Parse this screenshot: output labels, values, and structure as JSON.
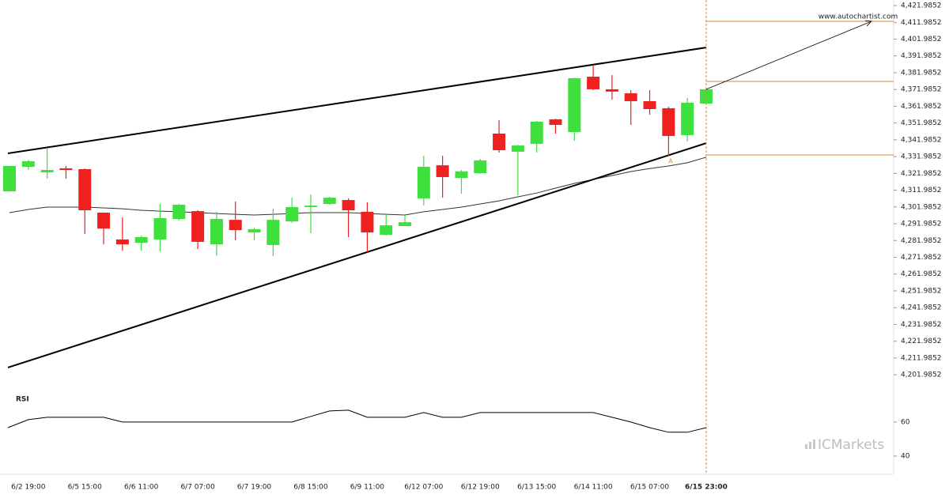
{
  "chart_data": [
    {
      "type": "candlestick",
      "categories": [
        null,
        "6/2 19:00",
        null,
        null,
        "6/5 15:00",
        null,
        null,
        "6/6 11:00",
        null,
        null,
        "6/7 07:00",
        null,
        null,
        "6/7 19:00",
        null,
        null,
        "6/8 15:00",
        null,
        null,
        "6/9 11:00",
        null,
        null,
        "6/12 07:00",
        null,
        null,
        "6/12 19:00",
        null,
        null,
        "6/13 15:00",
        null,
        null,
        "6/14 11:00",
        null,
        null,
        "6/15 07:00",
        null,
        null,
        "6/15 23:00"
      ],
      "open": [
        4311.3,
        4325.9,
        4322.6,
        4325.0,
        4324.5,
        4298.6,
        4282.6,
        4280.7,
        4282.6,
        4294.8,
        4299.5,
        4279.7,
        4294.3,
        4286.8,
        4279.3,
        4293.4,
        4301.9,
        4303.8,
        4306.1,
        4299.1,
        4285.4,
        4290.6,
        4307.1,
        4326.8,
        4319.3,
        4322.1,
        4345.7,
        4334.9,
        4339.6,
        4354.2,
        4346.6,
        4379.6,
        4372.1,
        4369.7,
        4365.0,
        4360.8,
        4344.8,
        4363.6
      ],
      "high": [
        4326.4,
        4330.1,
        4337.2,
        4326.4,
        4324.9,
        4298.6,
        4295.8,
        4284.9,
        4303.8,
        4303.8,
        4300.0,
        4299.1,
        4305.2,
        4289.6,
        4300.9,
        4307.5,
        4309.4,
        4308.0,
        4307.1,
        4304.7,
        4298.1,
        4297.2,
        4332.5,
        4332.5,
        4324.0,
        4330.6,
        4353.7,
        4339.1,
        4353.2,
        4354.6,
        4379.1,
        4386.7,
        4380.5,
        4371.6,
        4371.6,
        4361.7,
        4366.9,
        4372.5
      ],
      "low": [
        4311.3,
        4324.0,
        4318.8,
        4318.8,
        4285.9,
        4279.7,
        4275.9,
        4275.9,
        4275.5,
        4293.9,
        4276.9,
        4273.1,
        4282.1,
        4282.1,
        4272.7,
        4292.5,
        4286.3,
        4303.3,
        4284.0,
        4275.0,
        4284.9,
        4290.6,
        4302.8,
        4307.5,
        4309.9,
        4321.7,
        4334.4,
        4308.9,
        4334.4,
        4345.7,
        4341.4,
        4371.6,
        4365.9,
        4350.9,
        4357.0,
        4332.5,
        4341.0,
        4363.6
      ],
      "close": [
        4326.4,
        4329.2,
        4324.0,
        4324.0,
        4300.0,
        4289.1,
        4279.7,
        4284.0,
        4295.3,
        4303.3,
        4281.2,
        4294.8,
        4288.2,
        4288.7,
        4294.3,
        4301.9,
        4302.8,
        4307.5,
        4300.0,
        4286.8,
        4291.0,
        4292.9,
        4325.9,
        4319.8,
        4323.2,
        4329.7,
        4335.8,
        4338.6,
        4352.8,
        4350.9,
        4378.7,
        4372.1,
        4370.7,
        4365.0,
        4360.3,
        4344.3,
        4364.1,
        4372.1
      ],
      "ma": [
        4298.6,
        4300.5,
        4301.9,
        4301.9,
        4301.9,
        4301.4,
        4300.9,
        4300.0,
        4299.5,
        4299.1,
        4298.6,
        4298.1,
        4297.6,
        4297.2,
        4297.6,
        4298.1,
        4298.6,
        4298.6,
        4298.6,
        4298.1,
        4297.6,
        4297.2,
        4299.1,
        4300.5,
        4301.9,
        4303.8,
        4305.6,
        4308.0,
        4310.3,
        4313.2,
        4316.0,
        4318.4,
        4320.7,
        4323.1,
        4324.9,
        4326.4,
        4328.3,
        4331.6
      ],
      "up_color": "#3de03d",
      "down_color": "#ee2020",
      "trend_upper": [
        4333.9,
        4397.0
      ],
      "trend_lower": [
        4206.3,
        4340.0
      ],
      "levels": [
        4412.6,
        4376.8,
        4333.0
      ],
      "projection": [
        4372.1,
        4412.6
      ],
      "marker": "A",
      "source": "www.autochartist.com",
      "ylim": [
        4194.5,
        4425.3
      ],
      "yticks": [
        {
          "value": 4421.9852,
          "label": "4,421.9852"
        },
        {
          "value": 4411.9852,
          "label": "4,411.9852"
        },
        {
          "value": 4401.9852,
          "label": "4,401.9852"
        },
        {
          "value": 4391.9852,
          "label": "4,391.9852"
        },
        {
          "value": 4381.9852,
          "label": "4,381.9852"
        },
        {
          "value": 4371.9852,
          "label": "4,371.9852"
        },
        {
          "value": 4361.9852,
          "label": "4,361.9852"
        },
        {
          "value": 4351.9852,
          "label": "4,351.9852"
        },
        {
          "value": 4341.9852,
          "label": "4,341.9852"
        },
        {
          "value": 4331.9852,
          "label": "4,331.9852"
        },
        {
          "value": 4321.9852,
          "label": "4,321.9852"
        },
        {
          "value": 4311.9852,
          "label": "4,311.9852"
        },
        {
          "value": 4301.9852,
          "label": "4,301.9852"
        },
        {
          "value": 4291.9852,
          "label": "4,291.9852"
        },
        {
          "value": 4281.9852,
          "label": "4,281.9852"
        },
        {
          "value": 4271.9852,
          "label": "4,271.9852"
        },
        {
          "value": 4261.9852,
          "label": "4,261.9852"
        },
        {
          "value": 4251.9852,
          "label": "4,251.9852"
        },
        {
          "value": 4241.9852,
          "label": "4,241.9852"
        },
        {
          "value": 4231.9852,
          "label": "4,231.9852"
        },
        {
          "value": 4221.9852,
          "label": "4,221.9852"
        },
        {
          "value": 4211.9852,
          "label": "4,211.9852"
        },
        {
          "value": 4201.9852,
          "label": "4,201.9852"
        }
      ]
    },
    {
      "type": "line",
      "title": "RSI",
      "values": [
        56.7,
        61.4,
        62.8,
        62.8,
        62.8,
        62.8,
        60.0,
        60.0,
        60.0,
        60.0,
        60.0,
        60.0,
        60.0,
        60.0,
        60.0,
        60.0,
        63.3,
        66.5,
        67.0,
        62.8,
        62.8,
        62.8,
        65.6,
        62.8,
        62.8,
        65.6,
        65.6,
        65.6,
        65.6,
        65.6,
        65.6,
        65.6,
        62.8,
        60.0,
        56.7,
        54.0,
        54.0,
        56.7
      ],
      "ylim": [
        31.6,
        78.1
      ],
      "yticks": [
        40,
        60
      ]
    }
  ],
  "watermark": "ICMarkets"
}
